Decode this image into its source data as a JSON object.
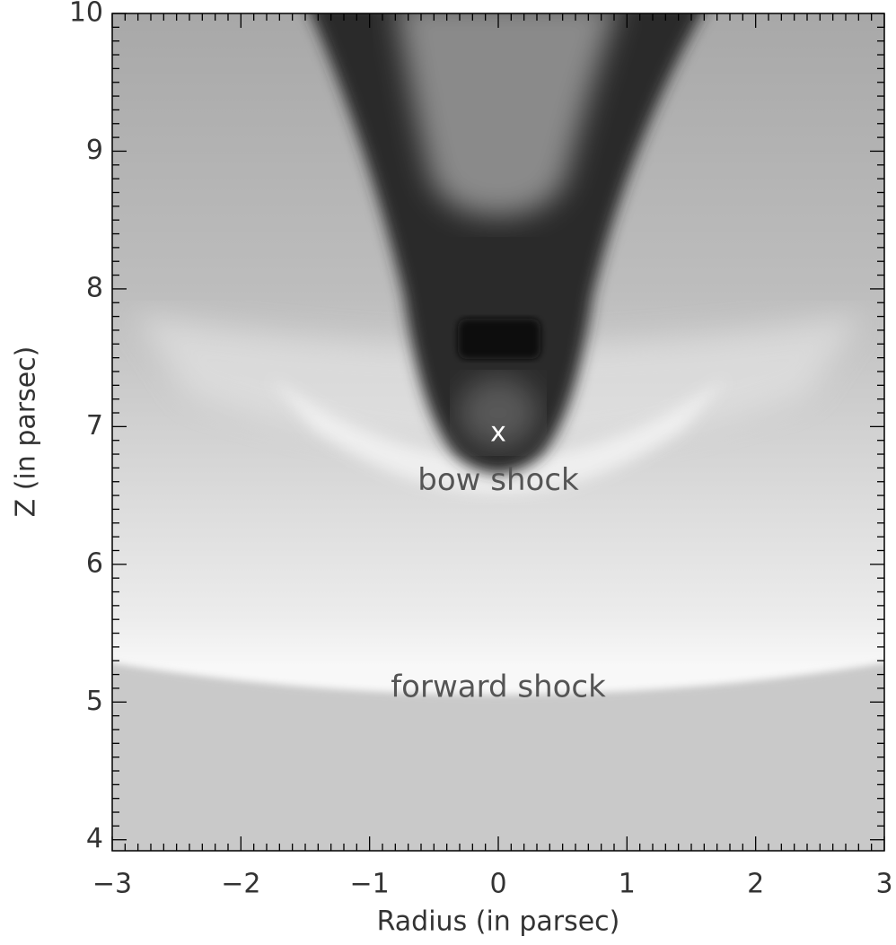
{
  "chart_data": {
    "type": "image",
    "xlabel": "Radius (in parsec)",
    "ylabel": "Z (in parsec)",
    "xlim": [
      -3,
      3
    ],
    "ylim": [
      3.92,
      10
    ],
    "xticks": [
      {
        "value": -3,
        "label": "−3"
      },
      {
        "value": -2,
        "label": "−2"
      },
      {
        "value": -1,
        "label": "−1"
      },
      0,
      1,
      2,
      3
    ],
    "yticks": [
      4,
      5,
      6,
      7,
      8,
      9,
      10
    ],
    "minor_ticks": 10,
    "annotations": [
      {
        "text": "x",
        "x": 0,
        "y": 6.95,
        "color": "#ffffff"
      },
      {
        "text": "bow shock",
        "x": 0,
        "y": 6.6,
        "color": "#555555"
      },
      {
        "text": "forward shock",
        "x": 0,
        "y": 5.1,
        "color": "#555555"
      }
    ]
  }
}
